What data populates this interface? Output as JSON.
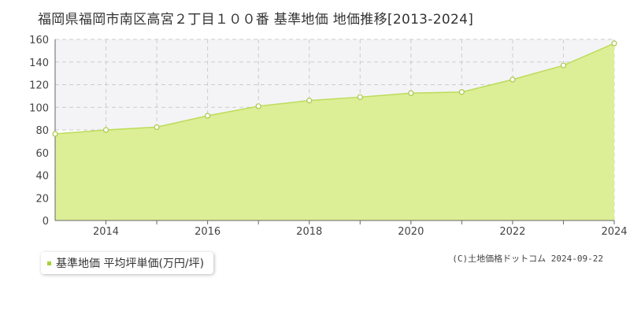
{
  "title": "福岡県福岡市南区高宮２丁目１００番 基準地価 地価推移[2013-2024]",
  "legend": {
    "label": "基準地価 平均坪単価(万円/坪)"
  },
  "credit": "(C)土地価格ドットコム 2024-09-22",
  "colors": {
    "fill": "#dcee96",
    "line": "#bcdc5a",
    "marker_stroke": "#a8c84a",
    "band": "#f4f4f6",
    "grid": "#cccccc"
  },
  "chart_data": {
    "type": "area",
    "title": "福岡県福岡市南区高宮２丁目１００番 基準地価 地価推移[2013-2024]",
    "xlabel": "",
    "ylabel": "",
    "xlim": [
      2013,
      2024
    ],
    "ylim": [
      0,
      160
    ],
    "x_ticks": [
      2014,
      2016,
      2018,
      2020,
      2022,
      2024
    ],
    "y_ticks": [
      0,
      20,
      40,
      60,
      80,
      100,
      120,
      140,
      160
    ],
    "grid": true,
    "series": [
      {
        "name": "基準地価 平均坪単価(万円/坪)",
        "x": [
          2013,
          2014,
          2015,
          2016,
          2017,
          2018,
          2019,
          2020,
          2021,
          2022,
          2023,
          2024
        ],
        "values": [
          76.5,
          80.0,
          82.5,
          92.5,
          101.0,
          106.0,
          109.0,
          112.5,
          113.5,
          124.5,
          137.0,
          156.5
        ]
      }
    ]
  }
}
